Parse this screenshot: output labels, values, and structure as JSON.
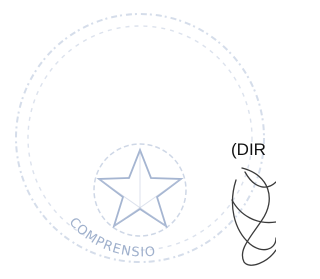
{
  "document": {
    "heading_fragment": "(DIR",
    "stamp_text": "COMPRENSIO"
  }
}
